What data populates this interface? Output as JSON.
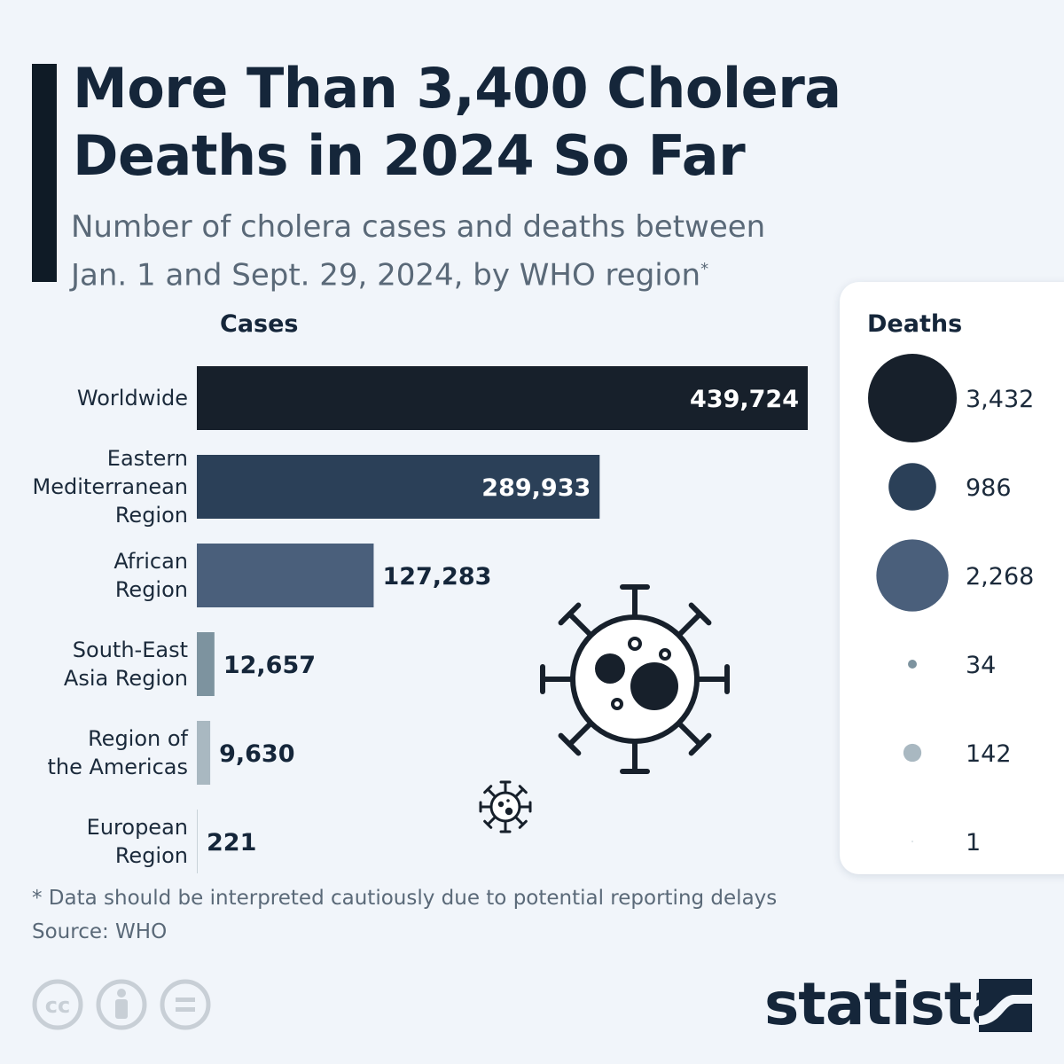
{
  "header": {
    "title": "More Than 3,400 Cholera\nDeaths in 2024 So Far",
    "subtitle": "Number of cholera cases and deaths between\nJan. 1 and Sept. 29, 2024, by WHO region",
    "subtitle_mark": "*"
  },
  "chart_data": {
    "type": "bar",
    "cases_heading": "Cases",
    "deaths_heading": "Deaths",
    "categories": [
      "Worldwide",
      "Eastern\nMediterranean\nRegion",
      "African\nRegion",
      "South-East\nAsia Region",
      "Region of\nthe Americas",
      "European\nRegion"
    ],
    "series": [
      {
        "name": "Cases",
        "values": [
          439724,
          289933,
          127283,
          12657,
          9630,
          221
        ]
      },
      {
        "name": "Deaths",
        "values": [
          3432,
          986,
          2268,
          34,
          142,
          1
        ]
      }
    ],
    "colors": [
      "#17202b",
      "#2b4058",
      "#4a5f7b",
      "#7d939f",
      "#a9b8c1",
      "#c9d3d9"
    ]
  },
  "footer": {
    "footnote": "* Data should be interpreted cautiously due to potential reporting delays",
    "source": "Source: WHO",
    "license_icons": [
      "cc-icon",
      "attribution-icon",
      "no-derivatives-icon"
    ],
    "logo": "statista"
  }
}
